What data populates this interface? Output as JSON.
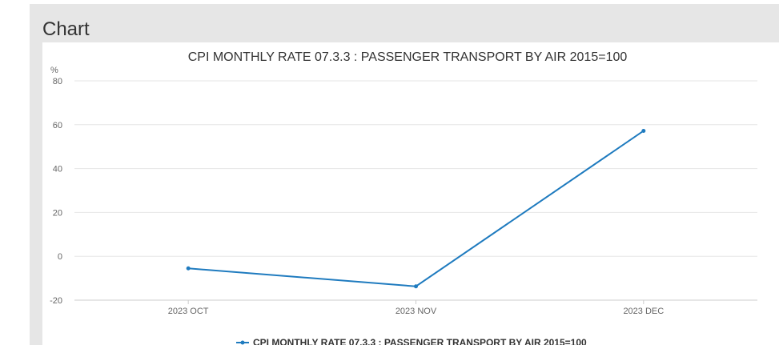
{
  "panel": {
    "title": "Chart"
  },
  "chart_data": {
    "type": "line",
    "title": "CPI MONTHLY RATE 07.3.3 : PASSENGER TRANSPORT BY AIR 2015=100",
    "ylabel": "%",
    "xlabel": "",
    "categories": [
      "2023 OCT",
      "2023 NOV",
      "2023 DEC"
    ],
    "series": [
      {
        "name": "CPI MONTHLY RATE 07.3.3 : PASSENGER TRANSPORT BY AIR 2015=100",
        "values": [
          -5.5,
          -13.7,
          57.2
        ]
      }
    ],
    "ylim": [
      -20,
      80
    ],
    "yticks": [
      80,
      60,
      40,
      20,
      0,
      -20
    ],
    "grid": true,
    "legend": "bottom-center",
    "colors": {
      "line": "#1f7bbf",
      "grid": "#e6e6e6",
      "axis": "#cccccc",
      "text": "#333333",
      "tick": "#666666"
    }
  }
}
